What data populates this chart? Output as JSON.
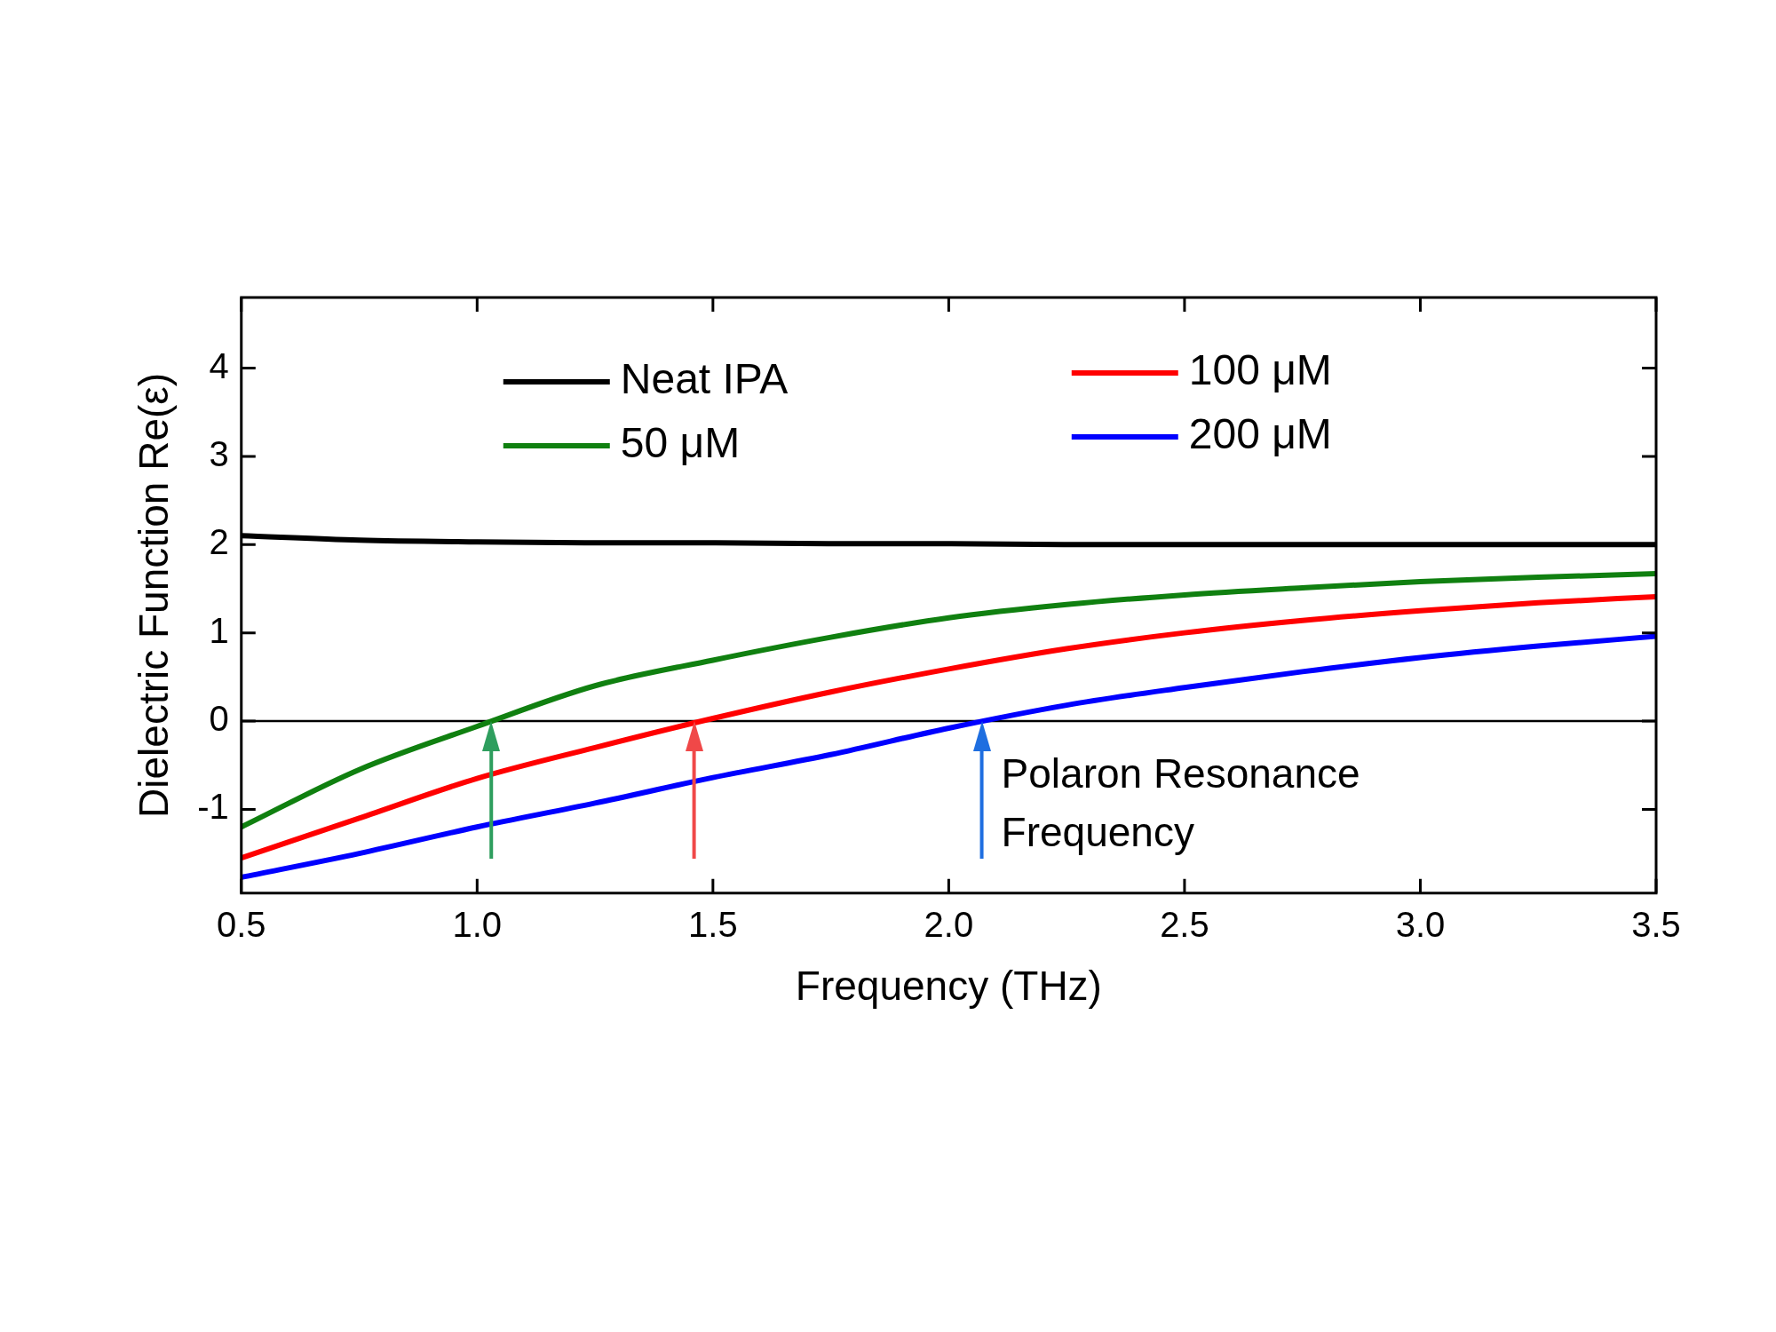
{
  "chart_data": {
    "type": "line",
    "xlabel": "Frequency (THz)",
    "ylabel": "Dielectric Function Re(ε)",
    "xlim": [
      0.5,
      3.5
    ],
    "xticks": [
      0.5,
      {
        "value": 1,
        "label": "1.0"
      },
      1.5,
      {
        "value": 2,
        "label": "2.0"
      },
      2.5,
      {
        "value": 3,
        "label": "3.0"
      },
      3.5
    ],
    "ylim": [
      -1.95,
      4.8
    ],
    "yticks": [
      -1,
      0,
      1,
      2,
      3,
      4
    ],
    "x": [
      0.5,
      0.75,
      1.0,
      1.25,
      1.5,
      1.75,
      2.0,
      2.25,
      2.5,
      2.75,
      3.0,
      3.25,
      3.5
    ],
    "series": [
      {
        "name": "Neat IPA",
        "color": "#000000",
        "values": [
          2.1,
          2.05,
          2.03,
          2.02,
          2.02,
          2.01,
          2.01,
          2.0,
          2.0,
          2.0,
          2.0,
          2.0,
          2.0
        ]
      },
      {
        "name": "50 μM",
        "color": "#108010",
        "values": [
          -1.2,
          -0.55,
          -0.06,
          0.4,
          0.69,
          0.95,
          1.17,
          1.32,
          1.43,
          1.51,
          1.58,
          1.63,
          1.67
        ]
      },
      {
        "name": "100 μM",
        "color": "#ff0000",
        "values": [
          -1.55,
          -1.1,
          -0.65,
          -0.3,
          0.03,
          0.33,
          0.59,
          0.82,
          1.0,
          1.14,
          1.25,
          1.34,
          1.41
        ]
      },
      {
        "name": "200 μM",
        "color": "#0000ff",
        "values": [
          -1.77,
          -1.5,
          -1.2,
          -0.93,
          -0.64,
          -0.38,
          -0.08,
          0.18,
          0.38,
          0.56,
          0.72,
          0.85,
          0.96
        ]
      }
    ],
    "ref_lines": [
      {
        "axis": "y",
        "value": 0,
        "color": "#000000"
      },
      {
        "axis": "x",
        "value": 1.03,
        "color": "#2e9e5e"
      },
      {
        "axis": "x",
        "value": 1.46,
        "color": "#f04848"
      },
      {
        "axis": "x",
        "value": 2.07,
        "color": "#1e6ee0"
      }
    ],
    "annotations": [
      "Polaron Resonance Frequency"
    ],
    "legend": "top",
    "grid": false,
    "marker": "none",
    "line_style": "solid"
  }
}
